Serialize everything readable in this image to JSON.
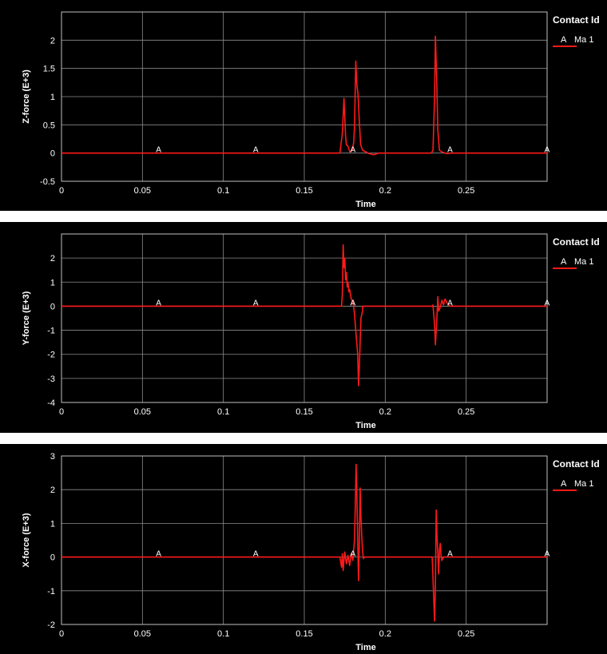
{
  "colors": {
    "background": "#000000",
    "grid": "#8c8c8c",
    "series": "#ff1a1a",
    "text": "#ffffff"
  },
  "chart_data": [
    {
      "type": "line",
      "ylabel": "Z-force (E+3)",
      "xlabel": "Time",
      "xlim": [
        0,
        0.3
      ],
      "ylim": [
        -0.5,
        2.5
      ],
      "xticks": [
        0,
        0.05,
        0.1,
        0.15,
        0.2,
        0.25
      ],
      "xtick_labels": [
        "0",
        "0.05",
        "0.1",
        "0.15",
        "0.2",
        "0.25"
      ],
      "yticks": [
        -0.5,
        0,
        0.5,
        1,
        1.5,
        2
      ],
      "ytick_labels": [
        "-0.5",
        "0",
        "0.5",
        "1",
        "1.5",
        "2"
      ],
      "grid": true,
      "legend": {
        "title": "Contact Id",
        "position": "right",
        "entries": [
          {
            "marker": "A",
            "name": "Ma 1"
          }
        ]
      },
      "marker_label": "A",
      "markers": [
        [
          0.06,
          0
        ],
        [
          0.12,
          0
        ],
        [
          0.18,
          0
        ],
        [
          0.24,
          0
        ],
        [
          0.3,
          0
        ]
      ],
      "series": [
        {
          "name": "Ma 1",
          "points": [
            [
              0,
              0
            ],
            [
              0.172,
              0
            ],
            [
              0.1735,
              0.35
            ],
            [
              0.1745,
              0.97
            ],
            [
              0.1755,
              0.3
            ],
            [
              0.176,
              0.15
            ],
            [
              0.177,
              0.12
            ],
            [
              0.178,
              0.03
            ],
            [
              0.1785,
              0.02
            ],
            [
              0.1795,
              0.05
            ],
            [
              0.1805,
              0.18
            ],
            [
              0.181,
              0.45
            ],
            [
              0.1818,
              1.63
            ],
            [
              0.1825,
              1.2
            ],
            [
              0.1832,
              1.05
            ],
            [
              0.184,
              0.55
            ],
            [
              0.1848,
              0.15
            ],
            [
              0.186,
              0.05
            ],
            [
              0.188,
              0.02
            ],
            [
              0.19,
              -0.01
            ],
            [
              0.193,
              -0.03
            ],
            [
              0.196,
              0
            ],
            [
              0.2285,
              0
            ],
            [
              0.2295,
              0.05
            ],
            [
              0.2305,
              1.0
            ],
            [
              0.231,
              2.07
            ],
            [
              0.2318,
              1.3
            ],
            [
              0.2325,
              0.4
            ],
            [
              0.2335,
              0.05
            ],
            [
              0.235,
              0.02
            ],
            [
              0.238,
              -0.01
            ],
            [
              0.241,
              0
            ],
            [
              0.3,
              0
            ]
          ]
        }
      ]
    },
    {
      "type": "line",
      "ylabel": "Y-force (E+3)",
      "xlabel": "Time",
      "xlim": [
        0,
        0.3
      ],
      "ylim": [
        -4,
        3
      ],
      "xticks": [
        0,
        0.05,
        0.1,
        0.15,
        0.2,
        0.25
      ],
      "xtick_labels": [
        "0",
        "0.05",
        "0.1",
        "0.15",
        "0.2",
        "0.25"
      ],
      "yticks": [
        -4,
        -3,
        -2,
        -1,
        0,
        1,
        2
      ],
      "ytick_labels": [
        "-4",
        "-3",
        "-2",
        "-1",
        "0",
        "1",
        "2"
      ],
      "grid": true,
      "legend": {
        "title": "Contact Id",
        "position": "right",
        "entries": [
          {
            "marker": "A",
            "name": "Ma 1"
          }
        ]
      },
      "marker_label": "A",
      "markers": [
        [
          0.06,
          0
        ],
        [
          0.12,
          0
        ],
        [
          0.18,
          0
        ],
        [
          0.24,
          0
        ],
        [
          0.3,
          0
        ]
      ],
      "series": [
        {
          "name": "Ma 1",
          "points": [
            [
              0,
              0
            ],
            [
              0.173,
              0
            ],
            [
              0.1735,
              0.5
            ],
            [
              0.174,
              2.55
            ],
            [
              0.1745,
              1.6
            ],
            [
              0.175,
              2.0
            ],
            [
              0.1755,
              1.1
            ],
            [
              0.176,
              1.4
            ],
            [
              0.1765,
              0.8
            ],
            [
              0.177,
              1.0
            ],
            [
              0.1775,
              0.6
            ],
            [
              0.178,
              0.7
            ],
            [
              0.179,
              0.3
            ],
            [
              0.18,
              0.2
            ],
            [
              0.181,
              -0.3
            ],
            [
              0.182,
              -1.2
            ],
            [
              0.183,
              -2.0
            ],
            [
              0.1835,
              -3.3
            ],
            [
              0.184,
              -2.5
            ],
            [
              0.1845,
              -1.5
            ],
            [
              0.185,
              -0.5
            ],
            [
              0.186,
              -0.2
            ],
            [
              0.186,
              0
            ],
            [
              0.229,
              0
            ],
            [
              0.2295,
              0.05
            ],
            [
              0.2305,
              -0.8
            ],
            [
              0.231,
              -1.6
            ],
            [
              0.2315,
              -1.0
            ],
            [
              0.232,
              -0.4
            ],
            [
              0.2325,
              0.4
            ],
            [
              0.233,
              -0.2
            ],
            [
              0.234,
              -0.05
            ],
            [
              0.235,
              0.25
            ],
            [
              0.236,
              0.05
            ],
            [
              0.237,
              0.3
            ],
            [
              0.238,
              0.15
            ],
            [
              0.24,
              0
            ],
            [
              0.3,
              0
            ]
          ]
        }
      ]
    },
    {
      "type": "line",
      "ylabel": "X-force (E+3)",
      "xlabel": "Time",
      "xlim": [
        0,
        0.3
      ],
      "ylim": [
        -2,
        3
      ],
      "xticks": [
        0,
        0.05,
        0.1,
        0.15,
        0.2,
        0.25
      ],
      "xtick_labels": [
        "0",
        "0.05",
        "0.1",
        "0.15",
        "0.2",
        "0.25"
      ],
      "yticks": [
        -2,
        -1,
        0,
        1,
        2,
        3
      ],
      "ytick_labels": [
        "-2",
        "-1",
        "0",
        "1",
        "2",
        "3"
      ],
      "grid": true,
      "legend": {
        "title": "Contact Id",
        "position": "right",
        "entries": [
          {
            "marker": "A",
            "name": "Ma 1"
          }
        ]
      },
      "marker_label": "A",
      "markers": [
        [
          0.06,
          0
        ],
        [
          0.12,
          0
        ],
        [
          0.18,
          0
        ],
        [
          0.24,
          0
        ],
        [
          0.3,
          0
        ]
      ],
      "series": [
        {
          "name": "Ma 1",
          "points": [
            [
              0,
              0
            ],
            [
              0.172,
              0
            ],
            [
              0.173,
              -0.3
            ],
            [
              0.1735,
              0.1
            ],
            [
              0.174,
              -0.4
            ],
            [
              0.1745,
              -0.1
            ],
            [
              0.175,
              0.15
            ],
            [
              0.176,
              -0.2
            ],
            [
              0.177,
              0.05
            ],
            [
              0.178,
              -0.25
            ],
            [
              0.179,
              0.1
            ],
            [
              0.18,
              -0.1
            ],
            [
              0.181,
              0.5
            ],
            [
              0.1815,
              1.5
            ],
            [
              0.182,
              2.75
            ],
            [
              0.1825,
              1.8
            ],
            [
              0.183,
              0.5
            ],
            [
              0.1835,
              -0.7
            ],
            [
              0.184,
              0.4
            ],
            [
              0.1845,
              2.05
            ],
            [
              0.185,
              1.2
            ],
            [
              0.1855,
              0.6
            ],
            [
              0.186,
              0.2
            ],
            [
              0.1865,
              -0.05
            ],
            [
              0.187,
              0
            ],
            [
              0.229,
              0
            ],
            [
              0.2295,
              -0.6
            ],
            [
              0.23,
              -1.3
            ],
            [
              0.2305,
              -1.9
            ],
            [
              0.231,
              -0.8
            ],
            [
              0.2315,
              1.4
            ],
            [
              0.232,
              0.6
            ],
            [
              0.2325,
              0.1
            ],
            [
              0.233,
              -0.5
            ],
            [
              0.2335,
              0.2
            ],
            [
              0.234,
              0.4
            ],
            [
              0.2345,
              0.05
            ],
            [
              0.235,
              -0.1
            ],
            [
              0.236,
              0
            ],
            [
              0.3,
              0
            ]
          ]
        }
      ]
    }
  ]
}
